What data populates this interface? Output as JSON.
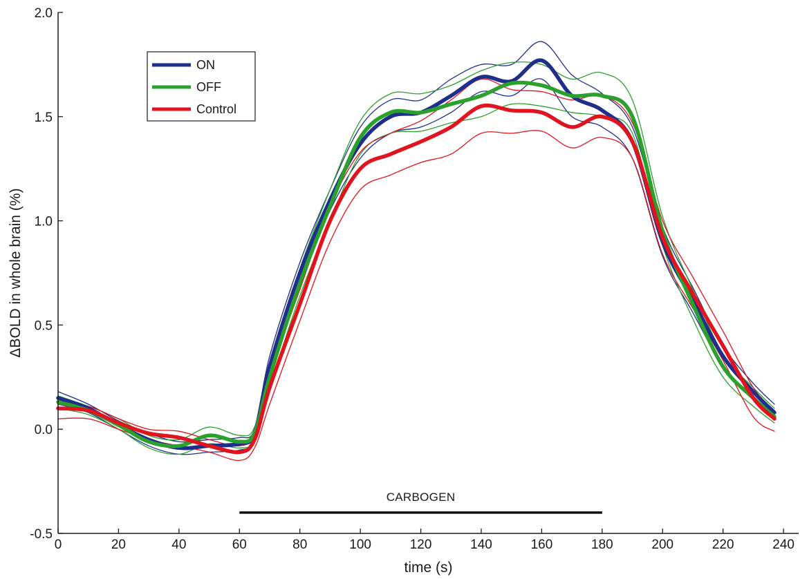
{
  "chart_data": {
    "type": "line",
    "title": "",
    "xlabel": "time (s)",
    "ylabel": "ΔBOLD in whole brain (%)",
    "xlim": [
      0,
      245
    ],
    "ylim": [
      -0.5,
      2.0
    ],
    "xticks": [
      0,
      20,
      40,
      60,
      80,
      100,
      120,
      140,
      160,
      180,
      200,
      220,
      240
    ],
    "yticks": [
      -0.5,
      0.0,
      0.5,
      1.0,
      1.5,
      2.0
    ],
    "xtick_labels": [
      "0",
      "20",
      "40",
      "60",
      "80",
      "100",
      "120",
      "140",
      "160",
      "180",
      "200",
      "220",
      "240"
    ],
    "ytick_labels": [
      "-0.5",
      "0.0",
      "0.5",
      "1.0",
      "1.5",
      "2.0"
    ],
    "grid": false,
    "legend_position": "top-left",
    "legend": [
      {
        "label": "ON",
        "color": "#1f2e8a"
      },
      {
        "label": "OFF",
        "color": "#2ca02c"
      },
      {
        "label": "Control",
        "color": "#e0141e"
      }
    ],
    "annotation": {
      "text": "CARBOGEN",
      "x_start": 60,
      "x_end": 180,
      "y": -0.4
    },
    "x": [
      0,
      10,
      20,
      30,
      40,
      50,
      60,
      65,
      70,
      80,
      90,
      100,
      110,
      120,
      130,
      140,
      150,
      160,
      170,
      180,
      190,
      200,
      210,
      220,
      230,
      237
    ],
    "series": [
      {
        "name": "ON",
        "color": "#1f2e8a",
        "kind": "mean",
        "values": [
          0.15,
          0.1,
          0.02,
          -0.05,
          -0.09,
          -0.08,
          -0.07,
          -0.02,
          0.3,
          0.75,
          1.1,
          1.37,
          1.5,
          1.52,
          1.6,
          1.69,
          1.67,
          1.77,
          1.6,
          1.53,
          1.38,
          0.9,
          0.62,
          0.35,
          0.18,
          0.08
        ]
      },
      {
        "name": "OFF",
        "color": "#2ca02c",
        "kind": "mean",
        "values": [
          0.13,
          0.09,
          0.02,
          -0.06,
          -0.08,
          -0.03,
          -0.06,
          -0.02,
          0.25,
          0.7,
          1.07,
          1.4,
          1.52,
          1.52,
          1.56,
          1.6,
          1.66,
          1.65,
          1.6,
          1.6,
          1.5,
          0.95,
          0.6,
          0.3,
          0.15,
          0.06
        ]
      },
      {
        "name": "Control",
        "color": "#e0141e",
        "kind": "mean",
        "values": [
          0.1,
          0.09,
          0.03,
          -0.02,
          -0.04,
          -0.08,
          -0.11,
          -0.05,
          0.2,
          0.6,
          1.0,
          1.25,
          1.32,
          1.38,
          1.45,
          1.55,
          1.53,
          1.52,
          1.45,
          1.5,
          1.38,
          0.92,
          0.65,
          0.4,
          0.15,
          0.05
        ]
      },
      {
        "name": "ON",
        "color": "#1f2e8a",
        "kind": "bound",
        "values": [
          0.18,
          0.12,
          0.04,
          -0.02,
          -0.06,
          -0.05,
          -0.04,
          0.0,
          0.35,
          0.8,
          1.15,
          1.45,
          1.58,
          1.58,
          1.68,
          1.75,
          1.75,
          1.86,
          1.7,
          1.61,
          1.45,
          0.97,
          0.68,
          0.4,
          0.22,
          0.12
        ]
      },
      {
        "name": "ON",
        "color": "#1f2e8a",
        "kind": "bound",
        "values": [
          0.12,
          0.08,
          0.0,
          -0.08,
          -0.12,
          -0.11,
          -0.1,
          -0.05,
          0.25,
          0.7,
          1.05,
          1.3,
          1.42,
          1.45,
          1.52,
          1.62,
          1.6,
          1.68,
          1.5,
          1.45,
          1.3,
          0.83,
          0.56,
          0.3,
          0.14,
          0.05
        ]
      },
      {
        "name": "OFF",
        "color": "#2ca02c",
        "kind": "bound",
        "values": [
          0.16,
          0.11,
          0.05,
          -0.03,
          -0.05,
          0.01,
          -0.03,
          0.01,
          0.3,
          0.77,
          1.15,
          1.48,
          1.61,
          1.61,
          1.65,
          1.72,
          1.76,
          1.75,
          1.68,
          1.71,
          1.58,
          1.02,
          0.67,
          0.36,
          0.2,
          0.1
        ]
      },
      {
        "name": "OFF",
        "color": "#2ca02c",
        "kind": "bound",
        "values": [
          0.1,
          0.07,
          0.0,
          -0.09,
          -0.12,
          -0.07,
          -0.09,
          -0.05,
          0.2,
          0.64,
          1.0,
          1.32,
          1.42,
          1.43,
          1.47,
          1.5,
          1.56,
          1.55,
          1.52,
          1.5,
          1.42,
          0.88,
          0.53,
          0.25,
          0.11,
          0.03
        ]
      },
      {
        "name": "Control",
        "color": "#e0141e",
        "kind": "bound",
        "values": [
          0.12,
          0.11,
          0.05,
          0.0,
          -0.01,
          -0.05,
          -0.08,
          -0.02,
          0.26,
          0.67,
          1.07,
          1.33,
          1.42,
          1.48,
          1.58,
          1.68,
          1.63,
          1.62,
          1.58,
          1.6,
          1.47,
          1.0,
          0.73,
          0.47,
          0.2,
          0.09
        ]
      },
      {
        "name": "Control",
        "color": "#e0141e",
        "kind": "bound",
        "values": [
          0.05,
          0.05,
          0.0,
          -0.05,
          -0.08,
          -0.11,
          -0.15,
          -0.09,
          0.12,
          0.52,
          0.9,
          1.15,
          1.22,
          1.28,
          1.32,
          1.42,
          1.42,
          1.43,
          1.35,
          1.4,
          1.3,
          0.84,
          0.58,
          0.33,
          0.06,
          -0.01
        ]
      }
    ]
  }
}
